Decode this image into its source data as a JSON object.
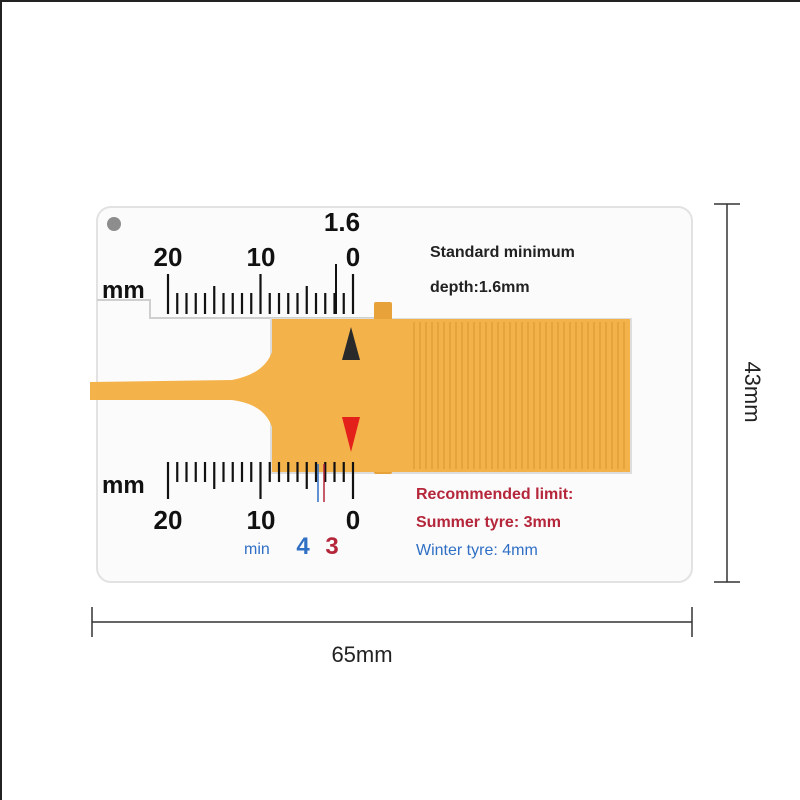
{
  "gauge": {
    "top_scale": {
      "unit": "mm",
      "labels": [
        "20",
        "10",
        "0"
      ],
      "marker_label": "1.6"
    },
    "bottom_scale": {
      "unit": "mm",
      "labels": [
        "20",
        "10",
        "0"
      ],
      "min_label": "min",
      "winter_mark": "4",
      "summer_mark": "3"
    },
    "standard_text": [
      "Standard minimum",
      "depth:1.6mm"
    ],
    "recommended": {
      "title": "Recommended limit:",
      "summer": "Summer tyre: 3mm",
      "winter": "Winter tyre: 4mm"
    },
    "colors": {
      "slider": "#f4b24a",
      "summer": "#b5263a",
      "winter": "#2f6fc4",
      "arrow_red": "#e4201b"
    }
  },
  "dimensions": {
    "height_label": "43mm",
    "width_label": "65mm"
  }
}
